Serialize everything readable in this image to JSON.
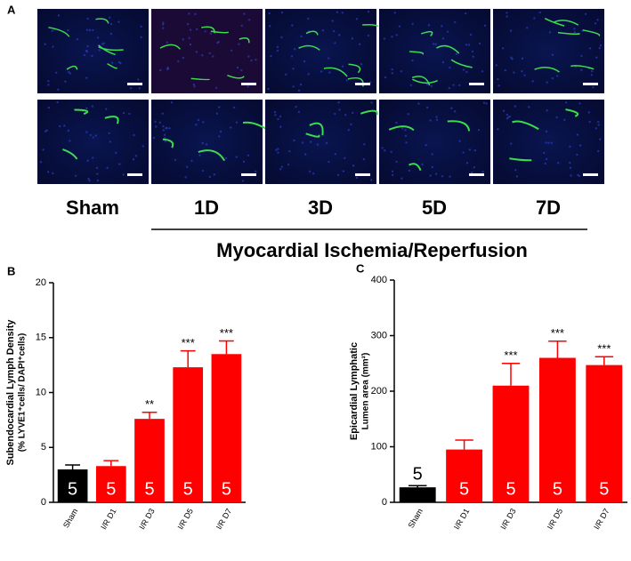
{
  "panel_a": {
    "label": "A",
    "groups": [
      "Sham",
      "1D",
      "3D",
      "5D",
      "7D"
    ],
    "bracket_label": "Myocardial Ischemia/Reperfusion"
  },
  "chart_data": [
    {
      "type": "bar",
      "panel_label": "B",
      "y_label": [
        "Subendocardial Lymph Density",
        "(% LYVE1⁺cells/ DAPI⁺cells)"
      ],
      "categories": [
        "Sham",
        "I/R D1",
        "I/R D3",
        "I/R D5",
        "I/R D7"
      ],
      "values": [
        3.0,
        3.3,
        7.6,
        12.3,
        13.5
      ],
      "errors": [
        0.4,
        0.5,
        0.6,
        1.5,
        1.2
      ],
      "significance": [
        null,
        null,
        "**",
        "***",
        "***"
      ],
      "n": [
        5,
        5,
        5,
        5,
        5
      ],
      "colors": [
        "#000000",
        "#ff0000",
        "#ff0000",
        "#ff0000",
        "#ff0000"
      ],
      "ylim": [
        0,
        20
      ],
      "yticks": [
        0,
        5,
        10,
        15,
        20
      ]
    },
    {
      "type": "bar",
      "panel_label": "C",
      "y_label": [
        "Epicardial Lymphatic",
        "Lumen area (mm²)"
      ],
      "categories": [
        "Sham",
        "I/R D1",
        "I/R D3",
        "I/R D5",
        "I/R D7"
      ],
      "values": [
        27,
        95,
        210,
        260,
        247
      ],
      "errors": [
        3,
        17,
        40,
        30,
        15
      ],
      "significance": [
        null,
        null,
        "***",
        "***",
        "***"
      ],
      "n": [
        5,
        5,
        5,
        5,
        5
      ],
      "colors": [
        "#000000",
        "#ff0000",
        "#ff0000",
        "#ff0000",
        "#ff0000"
      ],
      "ylim": [
        0,
        400
      ],
      "yticks": [
        0,
        100,
        200,
        300,
        400
      ]
    }
  ]
}
